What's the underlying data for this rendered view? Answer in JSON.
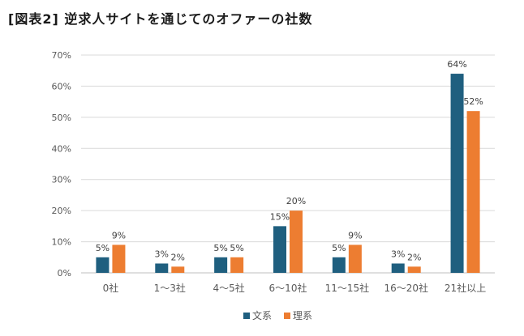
{
  "title": "[図表2] 逆求人サイトを通じてのオファーの社数",
  "chart_data": {
    "type": "bar",
    "title": "[図表2] 逆求人サイトを通じてのオファーの社数",
    "categories": [
      "0社",
      "1〜3社",
      "4〜5社",
      "6〜10社",
      "11〜15社",
      "16〜20社",
      "21社以上"
    ],
    "series": [
      {
        "name": "文系",
        "color": "#1f5f7f",
        "values": [
          5,
          3,
          5,
          15,
          5,
          3,
          64
        ],
        "labels": [
          "5%",
          "3%",
          "5%",
          "15%",
          "5%",
          "3%",
          "64%"
        ]
      },
      {
        "name": "理系",
        "color": "#ed7d31",
        "values": [
          9,
          2,
          5,
          20,
          9,
          2,
          52
        ],
        "labels": [
          "9%",
          "2%",
          "5%",
          "20%",
          "9%",
          "2%",
          "52%"
        ]
      }
    ],
    "ylim": [
      0,
      70
    ],
    "yticks": [
      "0%",
      "10%",
      "20%",
      "30%",
      "40%",
      "50%",
      "60%",
      "70%"
    ],
    "grid": true,
    "legend_position": "bottom"
  }
}
